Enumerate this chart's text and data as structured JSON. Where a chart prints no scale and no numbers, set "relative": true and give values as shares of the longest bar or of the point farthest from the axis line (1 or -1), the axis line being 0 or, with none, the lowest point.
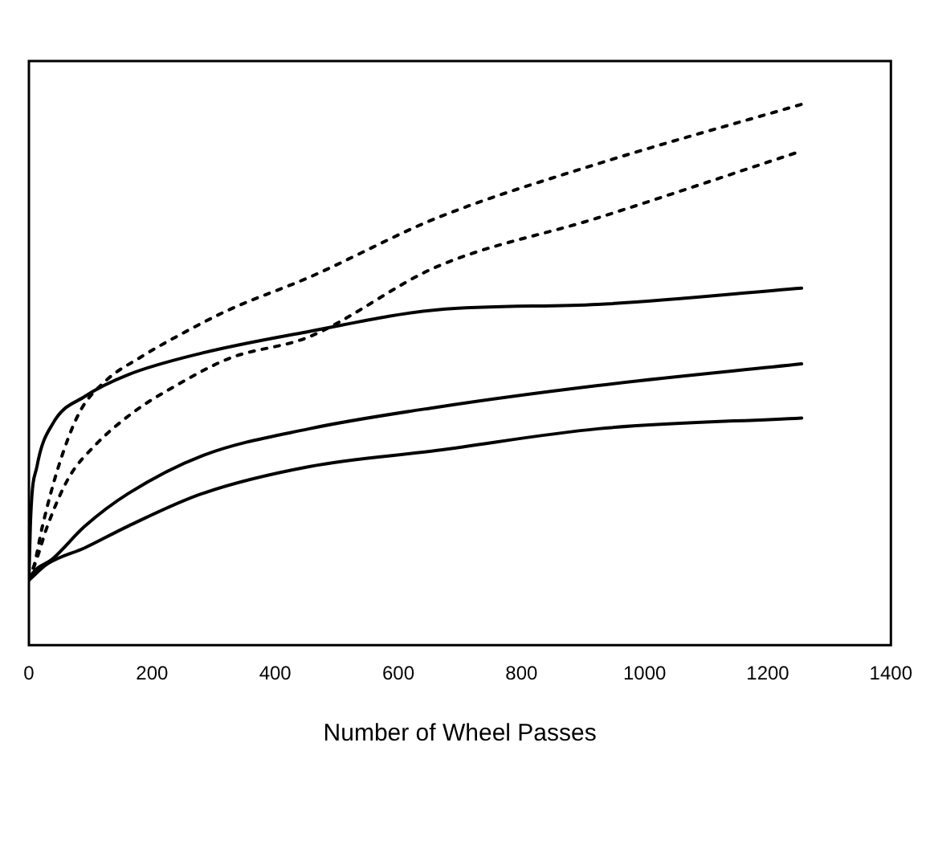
{
  "chart_data": {
    "type": "line",
    "xlabel": "Number of Wheel Passes",
    "relative": true,
    "xlim": [
      0,
      1400
    ],
    "xticks": [
      0,
      200,
      400,
      600,
      800,
      1000,
      1200,
      1400
    ],
    "grid": false,
    "legend": false,
    "marker": "none",
    "series": [
      {
        "color": "#000000",
        "line_style": "dotted",
        "x": [
          0,
          9,
          22,
          48,
          82,
          126,
          178,
          239,
          325,
          455,
          663,
          924,
          1255
        ],
        "values": [
          0.12,
          0.15,
          0.22,
          0.33,
          0.43,
          0.49,
          0.53,
          0.57,
          0.62,
          0.68,
          0.79,
          0.89,
          1
        ]
      },
      {
        "color": "#000000",
        "line_style": "dotted",
        "x": [
          0,
          13,
          30,
          65,
          108,
          169,
          239,
          325,
          455,
          663,
          924,
          1245
        ],
        "values": [
          0.12,
          0.16,
          0.22,
          0.31,
          0.37,
          0.43,
          0.48,
          0.53,
          0.57,
          0.7,
          0.79,
          0.91
        ]
      },
      {
        "color": "#000000",
        "line_style": "solid",
        "x": [
          0,
          3,
          13,
          39,
          91,
          161,
          281,
          455,
          663,
          924,
          1255
        ],
        "values": [
          0.12,
          0.24,
          0.33,
          0.41,
          0.46,
          0.5,
          0.54,
          0.58,
          0.62,
          0.63,
          0.66
        ]
      },
      {
        "color": "#000000",
        "line_style": "solid",
        "x": [
          0,
          4,
          39,
          91,
          161,
          281,
          455,
          663,
          924,
          1255
        ],
        "values": [
          0.12,
          0.13,
          0.16,
          0.22,
          0.28,
          0.35,
          0.4,
          0.44,
          0.48,
          0.52
        ]
      },
      {
        "color": "#000000",
        "line_style": "solid",
        "x": [
          0,
          30,
          91,
          161,
          281,
          455,
          663,
          924,
          1255
        ],
        "values": [
          0.12,
          0.15,
          0.18,
          0.22,
          0.28,
          0.33,
          0.36,
          0.4,
          0.42
        ]
      }
    ]
  }
}
